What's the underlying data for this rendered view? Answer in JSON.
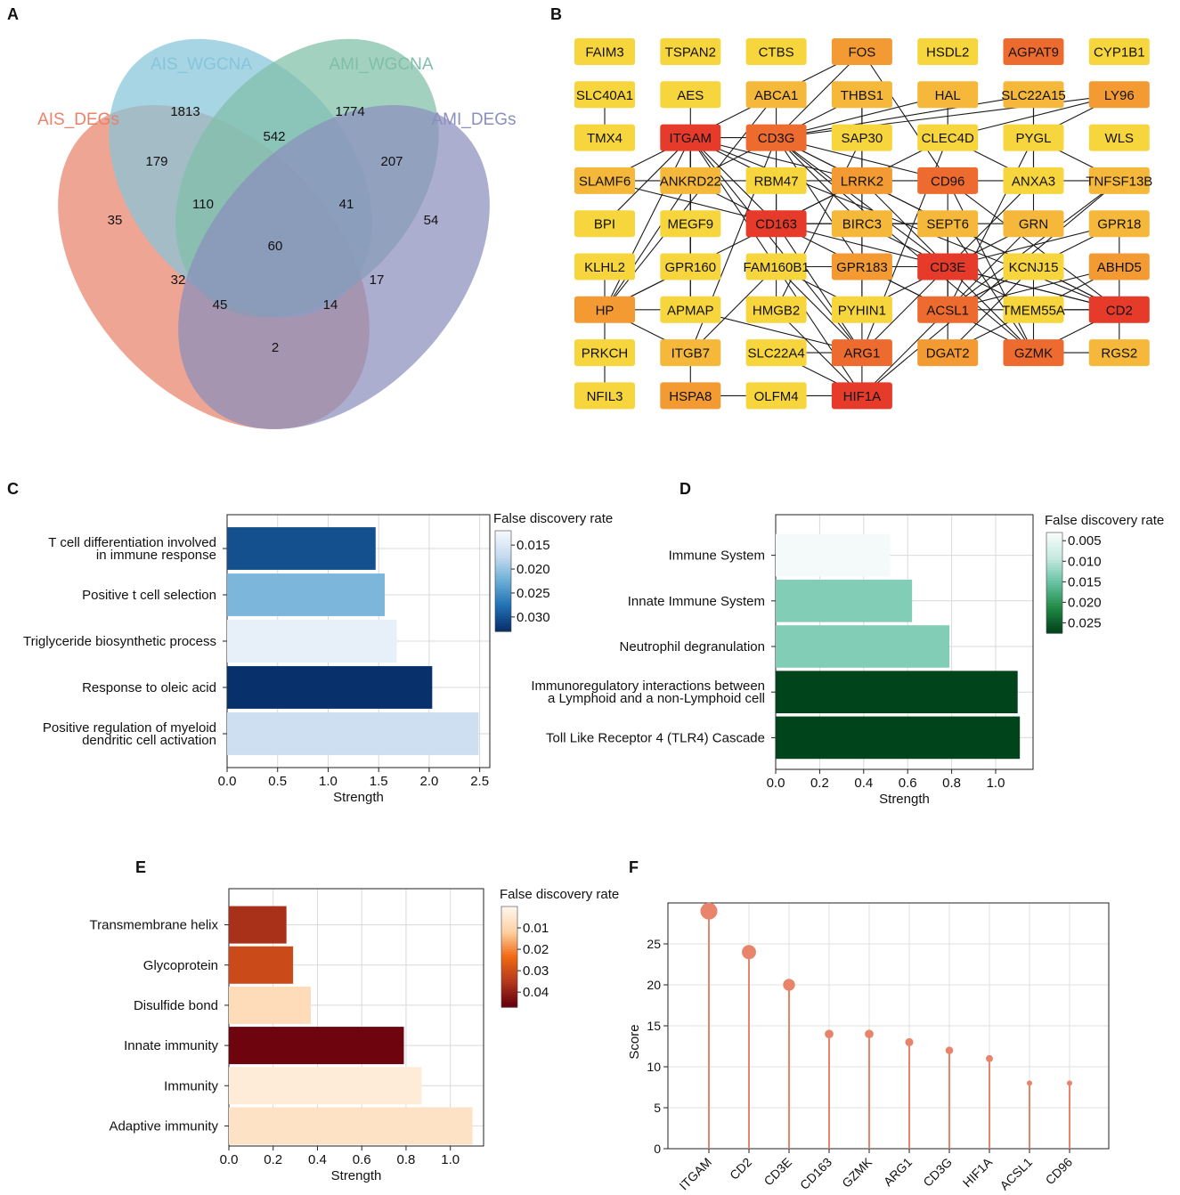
{
  "panels": {
    "a": "A",
    "b": "B",
    "c": "C",
    "d": "D",
    "e": "E",
    "f": "F"
  },
  "venn": {
    "sets": [
      {
        "label": "AIS_DEGs",
        "color": "#e8826b"
      },
      {
        "label": "AIS_WGCNA",
        "color": "#86c5da"
      },
      {
        "label": "AMI_WGCNA",
        "color": "#7fbfa8"
      },
      {
        "label": "AMI_DEGs",
        "color": "#8a8fbd"
      }
    ],
    "counts": [
      "1813",
      "542",
      "1774",
      "179",
      "207",
      "35",
      "110",
      "41",
      "54",
      "60",
      "32",
      "17",
      "45",
      "14",
      "2"
    ]
  },
  "network": {
    "palette": {
      "red": "#e63a2a",
      "orange_red": "#ee6b2f",
      "orange": "#f39a33",
      "gold": "#f5b83a",
      "yellow": "#f7d53c"
    },
    "nodes": [
      {
        "id": "FAIM3",
        "color": "yellow"
      },
      {
        "id": "TSPAN2",
        "color": "yellow"
      },
      {
        "id": "CTBS",
        "color": "yellow"
      },
      {
        "id": "FOS",
        "color": "orange"
      },
      {
        "id": "HSDL2",
        "color": "yellow"
      },
      {
        "id": "AGPAT9",
        "color": "orange_red"
      },
      {
        "id": "CYP1B1",
        "color": "yellow"
      },
      {
        "id": "SLC40A1",
        "color": "yellow"
      },
      {
        "id": "AES",
        "color": "yellow"
      },
      {
        "id": "ABCA1",
        "color": "gold"
      },
      {
        "id": "THBS1",
        "color": "gold"
      },
      {
        "id": "HAL",
        "color": "gold"
      },
      {
        "id": "SLC22A15",
        "color": "gold"
      },
      {
        "id": "LY96",
        "color": "orange"
      },
      {
        "id": "TMX4",
        "color": "yellow"
      },
      {
        "id": "ITGAM",
        "color": "red"
      },
      {
        "id": "CD3G",
        "color": "orange_red"
      },
      {
        "id": "SAP30",
        "color": "yellow"
      },
      {
        "id": "CLEC4D",
        "color": "yellow"
      },
      {
        "id": "PYGL",
        "color": "yellow"
      },
      {
        "id": "WLS",
        "color": "yellow"
      },
      {
        "id": "SLAMF6",
        "color": "gold"
      },
      {
        "id": "ANKRD22",
        "color": "gold"
      },
      {
        "id": "RBM47",
        "color": "yellow"
      },
      {
        "id": "LRRK2",
        "color": "orange"
      },
      {
        "id": "CD96",
        "color": "orange_red"
      },
      {
        "id": "ANXA3",
        "color": "yellow"
      },
      {
        "id": "TNFSF13B",
        "color": "gold"
      },
      {
        "id": "BPI",
        "color": "yellow"
      },
      {
        "id": "MEGF9",
        "color": "yellow"
      },
      {
        "id": "CD163",
        "color": "red"
      },
      {
        "id": "BIRC3",
        "color": "gold"
      },
      {
        "id": "SEPT6",
        "color": "gold"
      },
      {
        "id": "GRN",
        "color": "gold"
      },
      {
        "id": "GPR18",
        "color": "gold"
      },
      {
        "id": "KLHL2",
        "color": "yellow"
      },
      {
        "id": "GPR160",
        "color": "yellow"
      },
      {
        "id": "FAM160B1",
        "color": "yellow"
      },
      {
        "id": "GPR183",
        "color": "orange"
      },
      {
        "id": "CD3E",
        "color": "red"
      },
      {
        "id": "KCNJ15",
        "color": "yellow"
      },
      {
        "id": "ABHD5",
        "color": "orange"
      },
      {
        "id": "HP",
        "color": "orange"
      },
      {
        "id": "APMAP",
        "color": "yellow"
      },
      {
        "id": "HMGB2",
        "color": "yellow"
      },
      {
        "id": "PYHIN1",
        "color": "yellow"
      },
      {
        "id": "ACSL1",
        "color": "orange_red"
      },
      {
        "id": "TMEM55A",
        "color": "yellow"
      },
      {
        "id": "CD2",
        "color": "red"
      },
      {
        "id": "PRKCH",
        "color": "yellow"
      },
      {
        "id": "ITGB7",
        "color": "gold"
      },
      {
        "id": "SLC22A4",
        "color": "yellow"
      },
      {
        "id": "ARG1",
        "color": "orange_red"
      },
      {
        "id": "DGAT2",
        "color": "orange"
      },
      {
        "id": "GZMK",
        "color": "orange_red"
      },
      {
        "id": "RGS2",
        "color": "gold"
      },
      {
        "id": "NFIL3",
        "color": "yellow"
      },
      {
        "id": "HSPA8",
        "color": "orange"
      },
      {
        "id": "OLFM4",
        "color": "yellow"
      },
      {
        "id": "HIF1A",
        "color": "red"
      }
    ],
    "edges": [
      [
        "SLC40A1",
        "TMX4"
      ],
      [
        "ABCA1",
        "CD3G"
      ],
      [
        "ABCA1",
        "ITGAM"
      ],
      [
        "ABCA1",
        "HP"
      ],
      [
        "THBS1",
        "SAP30"
      ],
      [
        "THBS1",
        "CD3G"
      ],
      [
        "THBS1",
        "LRRK2"
      ],
      [
        "HAL",
        "CD3G"
      ],
      [
        "HAL",
        "CLEC4D"
      ],
      [
        "SLC22A15",
        "CD3G"
      ],
      [
        "SLC22A15",
        "GRN"
      ],
      [
        "SLC22A15",
        "PYGL"
      ],
      [
        "LY96",
        "PYGL"
      ],
      [
        "LY96",
        "CLEC4D"
      ],
      [
        "LY96",
        "CD3G"
      ],
      [
        "AES",
        "ITGAM"
      ],
      [
        "FOS",
        "CD3G"
      ],
      [
        "FOS",
        "ABCA1"
      ],
      [
        "FOS",
        "CD96"
      ],
      [
        "ITGAM",
        "CD3G"
      ],
      [
        "ITGAM",
        "SLAMF6"
      ],
      [
        "ITGAM",
        "ANKRD22"
      ],
      [
        "ITGAM",
        "RBM47"
      ],
      [
        "ITGAM",
        "LRRK2"
      ],
      [
        "ITGAM",
        "CD163"
      ],
      [
        "ITGAM",
        "MEGF9"
      ],
      [
        "ITGAM",
        "BPI"
      ],
      [
        "ITGAM",
        "GPR160"
      ],
      [
        "ITGAM",
        "HP"
      ],
      [
        "ITGAM",
        "ARG1"
      ],
      [
        "ITGAM",
        "HIF1A"
      ],
      [
        "ITGAM",
        "APMAP"
      ],
      [
        "ITGAM",
        "CD2"
      ],
      [
        "CD3G",
        "CD3E"
      ],
      [
        "CD3G",
        "CD2"
      ],
      [
        "CD3G",
        "CD96"
      ],
      [
        "CD3G",
        "SEPT6"
      ],
      [
        "CD3G",
        "GZMK"
      ],
      [
        "CD3G",
        "RBM47"
      ],
      [
        "CD3G",
        "BIRC3"
      ],
      [
        "CD3G",
        "ANKRD22"
      ],
      [
        "CD3G",
        "GPR183"
      ],
      [
        "CD3G",
        "ITGB7"
      ],
      [
        "CLEC4D",
        "CD163"
      ],
      [
        "CLEC4D",
        "ANXA3"
      ],
      [
        "CLEC4D",
        "ARG1"
      ],
      [
        "PYGL",
        "ANXA3"
      ],
      [
        "PYGL",
        "ACSL1"
      ],
      [
        "PYGL",
        "TNFSF13B"
      ],
      [
        "SAP30",
        "BIRC3"
      ],
      [
        "SAP30",
        "HMGB2"
      ],
      [
        "SLAMF6",
        "ANKRD22"
      ],
      [
        "SLAMF6",
        "CD2"
      ],
      [
        "ANKRD22",
        "RBM47"
      ],
      [
        "ANKRD22",
        "CD163"
      ],
      [
        "ANKRD22",
        "HP"
      ],
      [
        "RBM47",
        "LRRK2"
      ],
      [
        "RBM47",
        "CD163"
      ],
      [
        "RBM47",
        "FAM160B1"
      ],
      [
        "LRRK2",
        "CD96"
      ],
      [
        "LRRK2",
        "CD163"
      ],
      [
        "LRRK2",
        "CD3E"
      ],
      [
        "LRRK2",
        "GPR183"
      ],
      [
        "CD96",
        "ANXA3"
      ],
      [
        "CD96",
        "CD3E"
      ],
      [
        "CD96",
        "CD2"
      ],
      [
        "CD96",
        "GZMK"
      ],
      [
        "ANXA3",
        "TNFSF13B"
      ],
      [
        "ANXA3",
        "ARG1"
      ],
      [
        "TNFSF13B",
        "ACSL1"
      ],
      [
        "TNFSF13B",
        "HIF1A"
      ],
      [
        "CD163",
        "BIRC3"
      ],
      [
        "CD163",
        "GPR183"
      ],
      [
        "CD163",
        "SEPT6"
      ],
      [
        "CD163",
        "HP"
      ],
      [
        "CD163",
        "ARG1"
      ],
      [
        "BIRC3",
        "SEPT6"
      ],
      [
        "BIRC3",
        "GRN"
      ],
      [
        "BIRC3",
        "PYHIN1"
      ],
      [
        "BIRC3",
        "CD3E"
      ],
      [
        "SEPT6",
        "CD3E"
      ],
      [
        "SEPT6",
        "CD2"
      ],
      [
        "SEPT6",
        "GZMK"
      ],
      [
        "SEPT6",
        "ACSL1"
      ],
      [
        "GRN",
        "CD3E"
      ],
      [
        "GRN",
        "HIF1A"
      ],
      [
        "GPR18",
        "CD3E"
      ],
      [
        "GPR18",
        "ACSL1"
      ],
      [
        "GPR18",
        "CD2"
      ],
      [
        "MEGF9",
        "APMAP"
      ],
      [
        "MEGF9",
        "GPR160"
      ],
      [
        "GPR160",
        "HP"
      ],
      [
        "FAM160B1",
        "HMGB2"
      ],
      [
        "FAM160B1",
        "PYHIN1"
      ],
      [
        "FAM160B1",
        "GPR183"
      ],
      [
        "FAM160B1",
        "ITGB7"
      ],
      [
        "FAM160B1",
        "ARG1"
      ],
      [
        "GPR183",
        "CD3E"
      ],
      [
        "GPR183",
        "PYHIN1"
      ],
      [
        "GPR183",
        "ACSL1"
      ],
      [
        "GPR183",
        "GZMK"
      ],
      [
        "CD3E",
        "CD2"
      ],
      [
        "CD3E",
        "GZMK"
      ],
      [
        "CD3E",
        "TMEM55A"
      ],
      [
        "CD3E",
        "ACSL1"
      ],
      [
        "CD3E",
        "PYHIN1"
      ],
      [
        "KCNJ15",
        "ACSL1"
      ],
      [
        "KCNJ15",
        "TMEM55A"
      ],
      [
        "KCNJ15",
        "DGAT2"
      ],
      [
        "ABHD5",
        "ACSL1"
      ],
      [
        "ABHD5",
        "DGAT2"
      ],
      [
        "HP",
        "APMAP"
      ],
      [
        "HP",
        "ITGB7"
      ],
      [
        "APMAP",
        "ARG1"
      ],
      [
        "HMGB2",
        "HIF1A"
      ],
      [
        "PYHIN1",
        "ARG1"
      ],
      [
        "ACSL1",
        "DGAT2"
      ],
      [
        "ACSL1",
        "CD2"
      ],
      [
        "TMEM55A",
        "CD2"
      ],
      [
        "TMEM55A",
        "GZMK"
      ],
      [
        "CD2",
        "RGS2"
      ],
      [
        "CD2",
        "GZMK"
      ],
      [
        "GZMK",
        "RGS2"
      ],
      [
        "KLHL2",
        "PRKCH"
      ],
      [
        "PRKCH",
        "NFIL3"
      ],
      [
        "ITGB7",
        "HSPA8"
      ],
      [
        "SLC22A4",
        "HIF1A"
      ],
      [
        "ARG1",
        "HIF1A"
      ],
      [
        "HSPA8",
        "OLFM4"
      ],
      [
        "OLFM4",
        "HIF1A"
      ],
      [
        "SLC22A4",
        "ARG1"
      ]
    ]
  },
  "chart_data": [
    {
      "panel": "C",
      "type": "bar",
      "orientation": "horizontal",
      "categories": [
        "T cell differentiation involved\nin immune response",
        "Positive t cell selection",
        "Triglyceride biosynthetic process",
        "Response to oleic acid",
        "Positive regulation of myeloid\ndendritic cell activation"
      ],
      "values": [
        1.47,
        1.56,
        1.68,
        2.03,
        2.49
      ],
      "fdr": [
        0.0305,
        0.0215,
        0.0135,
        0.0335,
        0.0165
      ],
      "xlabel": "Strength",
      "xlim": [
        0,
        2.6
      ],
      "xticks": [
        "0.0",
        "0.5",
        "1.0",
        "1.5",
        "2.0",
        "2.5"
      ],
      "colorbar": {
        "title": "False discovery rate",
        "ticks": [
          "0.015",
          "0.020",
          "0.025",
          "0.030"
        ],
        "range": [
          0.012,
          0.033
        ],
        "colors": [
          "#f4f8fd",
          "#c6dbef",
          "#6baed6",
          "#2171b5",
          "#08306b"
        ]
      }
    },
    {
      "panel": "D",
      "type": "bar",
      "orientation": "horizontal",
      "categories": [
        "Immune System",
        "Innate Immune System",
        "Neutrophil degranulation",
        "Immunoregulatory interactions between\na Lymphoid and a non-Lymphoid cell",
        "Toll Like Receptor 4 (TLR4) Cascade"
      ],
      "values": [
        0.52,
        0.62,
        0.79,
        1.1,
        1.11
      ],
      "fdr": [
        0.0035,
        0.0135,
        0.0135,
        0.0275,
        0.0275
      ],
      "xlabel": "Strength",
      "xlim": [
        0,
        1.17
      ],
      "xticks": [
        "0.0",
        "0.2",
        "0.4",
        "0.6",
        "0.8",
        "1.0"
      ],
      "colorbar": {
        "title": "False discovery rate",
        "ticks": [
          "0.005",
          "0.010",
          "0.015",
          "0.020",
          "0.025"
        ],
        "range": [
          0.003,
          0.0275
        ],
        "colors": [
          "#f7fcfb",
          "#c7e9e0",
          "#66c2a4",
          "#238b45",
          "#00441b"
        ]
      }
    },
    {
      "panel": "E",
      "type": "bar",
      "orientation": "horizontal",
      "categories": [
        "Transmembrane helix",
        "Glycoprotein",
        "Disulfide bond",
        "Innate immunity",
        "Immunity",
        "Adaptive immunity"
      ],
      "values": [
        0.26,
        0.29,
        0.37,
        0.79,
        0.87,
        1.1
      ],
      "fdr": [
        0.037,
        0.031,
        0.008,
        0.046,
        0.003,
        0.006
      ],
      "xlabel": "Strength",
      "xlim": [
        0,
        1.15
      ],
      "xticks": [
        "0.0",
        "0.2",
        "0.4",
        "0.6",
        "0.8",
        "1.0"
      ],
      "colorbar": {
        "title": "False discovery rate",
        "ticks": [
          "0.01",
          "0.02",
          "0.03",
          "0.04"
        ],
        "range": [
          0.0,
          0.047
        ],
        "colors": [
          "#fff5eb",
          "#fdd0a2",
          "#f16913",
          "#b5391c",
          "#67000d"
        ]
      }
    },
    {
      "panel": "F",
      "type": "lollipop",
      "categories": [
        "ITGAM",
        "CD2",
        "CD3E",
        "CD163",
        "GZMK",
        "ARG1",
        "CD3G",
        "HIF1A",
        "ACSL1",
        "CD96"
      ],
      "values": [
        29,
        24,
        20,
        14,
        14,
        13,
        12,
        11,
        8,
        8
      ],
      "ylabel": "Score",
      "ylim": [
        0,
        30
      ],
      "yticks": [
        "0",
        "5",
        "10",
        "15",
        "20",
        "25"
      ],
      "color": "#e8836c"
    }
  ]
}
